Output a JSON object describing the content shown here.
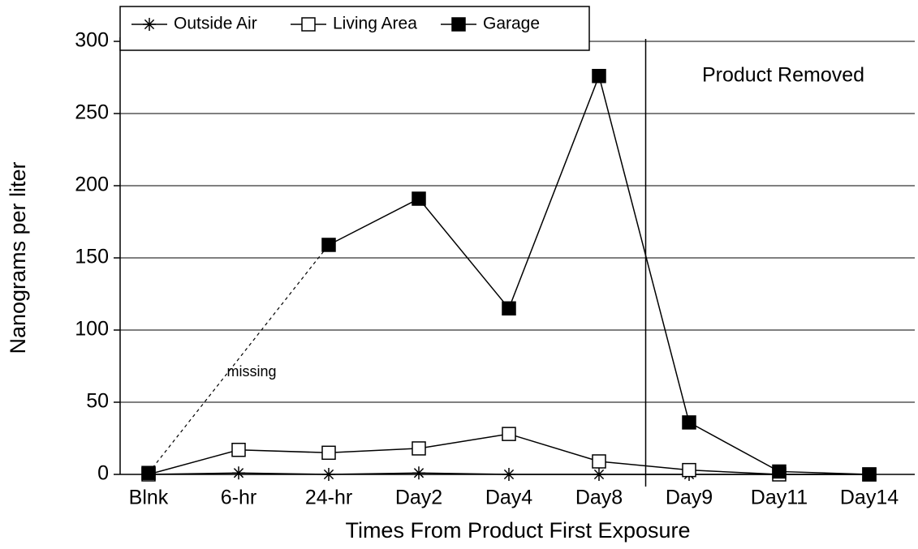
{
  "chart_data": {
    "type": "line",
    "categories": [
      "Blnk",
      "6-hr",
      "24-hr",
      "Day2",
      "Day4",
      "Day8",
      "Day9",
      "Day11",
      "Day14"
    ],
    "series": [
      {
        "name": "Outside Air",
        "color": "#000000",
        "marker": "asterisk",
        "values": [
          0,
          1,
          0,
          1,
          0,
          0,
          0,
          0,
          0
        ]
      },
      {
        "name": "Living Area",
        "color": "#000000",
        "marker": "open-square",
        "values": [
          0,
          17,
          15,
          18,
          28,
          9,
          3,
          0,
          0
        ]
      },
      {
        "name": "Garage",
        "color": "#000000",
        "marker": "filled-square",
        "values": [
          1,
          null,
          159,
          191,
          115,
          276,
          36,
          2,
          0
        ]
      }
    ],
    "ylim": [
      0,
      300
    ],
    "yticks": [
      0,
      50,
      100,
      150,
      200,
      250,
      300
    ],
    "grid": true,
    "ylabel": "Nanograms per liter",
    "xlabel": "Times From Product First Exposure",
    "annotations": [
      "missing",
      "Product Removed"
    ],
    "legend": "top-left"
  }
}
